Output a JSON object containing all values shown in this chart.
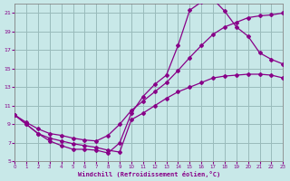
{
  "xlabel": "Windchill (Refroidissement éolien,°C)",
  "bg_color": "#c8e8e8",
  "line_color": "#880088",
  "grid_color": "#99bbbb",
  "xlim": [
    0,
    23
  ],
  "ylim": [
    5,
    22
  ],
  "yticks": [
    5,
    7,
    9,
    11,
    13,
    15,
    17,
    19,
    21
  ],
  "xticks": [
    0,
    1,
    2,
    3,
    4,
    5,
    6,
    7,
    8,
    9,
    10,
    11,
    12,
    13,
    14,
    15,
    16,
    17,
    18,
    19,
    20,
    21,
    22,
    23
  ],
  "curve_bell_x": [
    0,
    1,
    2,
    3,
    4,
    5,
    6,
    7,
    8,
    9,
    10,
    11,
    12,
    13,
    14,
    15,
    16,
    17,
    18,
    19,
    20,
    21,
    22,
    23
  ],
  "curve_bell_y": [
    10.0,
    9.0,
    8.0,
    7.2,
    6.7,
    6.3,
    6.3,
    6.2,
    5.9,
    7.0,
    10.2,
    12.0,
    13.3,
    14.3,
    17.5,
    21.3,
    22.2,
    22.5,
    21.2,
    19.5,
    18.5,
    16.7,
    16.0,
    15.5
  ],
  "curve_mid_x": [
    0,
    1,
    2,
    3,
    4,
    5,
    6,
    7,
    8,
    9,
    10,
    11,
    12,
    13,
    14,
    15,
    16,
    17,
    18,
    19,
    20,
    21,
    22,
    23
  ],
  "curve_mid_y": [
    10.0,
    9.2,
    8.5,
    8.0,
    7.8,
    7.5,
    7.3,
    7.2,
    7.8,
    9.0,
    10.5,
    11.5,
    12.5,
    13.5,
    14.8,
    16.2,
    17.5,
    18.7,
    19.5,
    20.0,
    20.5,
    20.7,
    20.8,
    21.0
  ],
  "curve_bot_x": [
    0,
    1,
    2,
    3,
    4,
    5,
    6,
    7,
    8,
    9,
    10,
    11,
    12,
    13,
    14,
    15,
    16,
    17,
    18,
    19,
    20,
    21,
    22,
    23
  ],
  "curve_bot_y": [
    10.0,
    9.0,
    8.0,
    7.5,
    7.2,
    6.9,
    6.7,
    6.5,
    6.2,
    6.0,
    9.5,
    10.2,
    11.0,
    11.8,
    12.5,
    13.0,
    13.5,
    14.0,
    14.2,
    14.3,
    14.4,
    14.4,
    14.3,
    14.0
  ]
}
